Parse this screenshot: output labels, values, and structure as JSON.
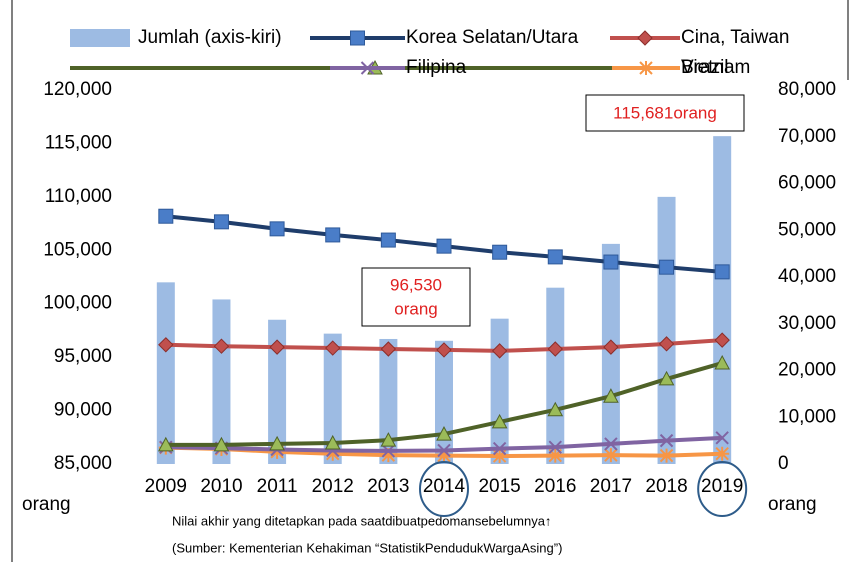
{
  "chart_data": {
    "type": "bar_line",
    "categories": [
      "2009",
      "2010",
      "2011",
      "2012",
      "2013",
      "2014",
      "2015",
      "2016",
      "2017",
      "2018",
      "2019"
    ],
    "series": [
      {
        "name": "Jumlah (axis-kiri)",
        "type": "bar",
        "axis": "y",
        "color": "#9dbbe3",
        "values": [
          102000,
          100400,
          98500,
          97200,
          96700,
          96530,
          98600,
          101500,
          105600,
          110000,
          115681
        ]
      },
      {
        "name": "Korea Selatan/Utara",
        "type": "line",
        "axis": "y2",
        "color": "#1f3d6b",
        "marker": "square",
        "marker_color": "#4a7dc8",
        "values": [
          53000,
          51800,
          50300,
          49000,
          47900,
          46600,
          45300,
          44300,
          43200,
          42100,
          41100
        ]
      },
      {
        "name": "Cina, Taiwan",
        "type": "line",
        "axis": "y2",
        "color": "#c0504d",
        "marker": "diamond",
        "marker_color": "#c0504d",
        "values": [
          25500,
          25200,
          25000,
          24800,
          24600,
          24400,
          24200,
          24600,
          25000,
          25700,
          26500
        ]
      },
      {
        "name": "Vietnam",
        "type": "line",
        "axis": "y2",
        "color": "#4f6228",
        "marker": "triangle",
        "marker_color": "#9bbb59",
        "values": [
          4100,
          4100,
          4300,
          4500,
          5100,
          6400,
          9000,
          11600,
          14500,
          18200,
          21600
        ]
      },
      {
        "name": "Filipina",
        "type": "line",
        "axis": "y2",
        "color": "#8064a2",
        "marker": "x",
        "marker_color": "#8064a2",
        "values": [
          3600,
          3400,
          3100,
          2900,
          2800,
          2900,
          3300,
          3600,
          4300,
          5000,
          5600
        ]
      },
      {
        "name": "Brazil",
        "type": "line",
        "axis": "y2",
        "color": "#f79646",
        "marker": "asterisk",
        "marker_color": "#f79646",
        "values": [
          3500,
          3200,
          2600,
          2200,
          1900,
          1800,
          1700,
          1800,
          1900,
          1800,
          2200
        ]
      }
    ],
    "ylim": [
      85000,
      120000
    ],
    "yticks": [
      {
        "value": 85000,
        "label": "85,000"
      },
      {
        "value": 90000,
        "label": "90,000"
      },
      {
        "value": 95000,
        "label": "95,000"
      },
      {
        "value": 100000,
        "label": "100,000"
      },
      {
        "value": 105000,
        "label": "105,000"
      },
      {
        "value": 110000,
        "label": "110,000"
      },
      {
        "value": 115000,
        "label": "115,000"
      },
      {
        "value": 120000,
        "label": "120,000"
      }
    ],
    "y2lim": [
      0,
      80000
    ],
    "y2ticks": [
      0,
      {
        "value": 10000,
        "label": "10,000"
      },
      {
        "value": 20000,
        "label": "20,000"
      },
      {
        "value": 30000,
        "label": "30,000"
      },
      {
        "value": 40000,
        "label": "40,000"
      },
      {
        "value": 50000,
        "label": "50,000"
      },
      {
        "value": 60000,
        "label": "60,000"
      },
      {
        "value": 70000,
        "label": "70,000"
      },
      {
        "value": 80000,
        "label": "80,000"
      }
    ],
    "y_label": "orang",
    "y2_label": "orang",
    "annotations": [
      "115,681orang",
      "96,530",
      "orang"
    ],
    "notes": [
      "Nilai akhir yang ditetapkan pada saatdibuatpedomansebelumnya↑",
      "(Sumber: Kementerian Kehakiman “StatistikPendudukWargaAsing”)"
    ]
  }
}
